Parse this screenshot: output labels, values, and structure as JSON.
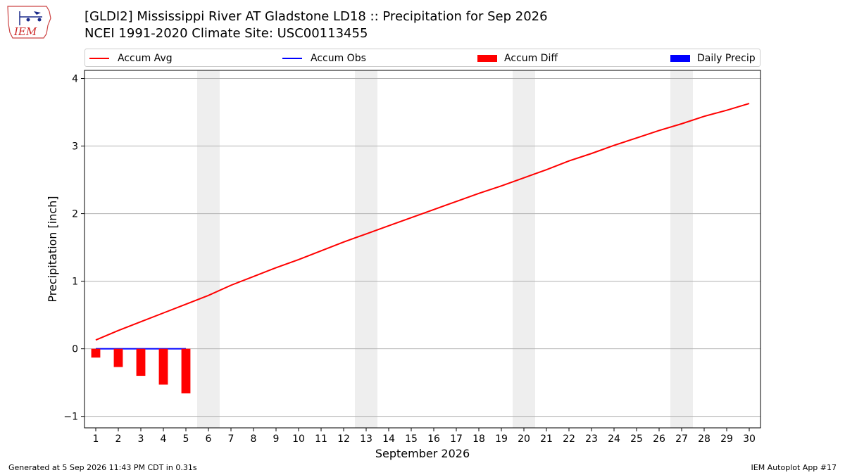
{
  "title_line1": "[GLDI2] Mississippi River  AT Gladstone LD18 :: Precipitation for Sep 2026",
  "title_line2": "NCEI 1991-2020 Climate Site: USC00113455",
  "logo_text": "IEM",
  "legend": {
    "accum_avg": "Accum Avg",
    "accum_obs": "Accum Obs",
    "accum_diff": "Accum Diff",
    "daily_precip": "Daily Precip"
  },
  "colors": {
    "accum_avg": "#ff0000",
    "accum_obs": "#0000ff",
    "accum_diff": "#ff0000",
    "daily_precip": "#0000ff",
    "weekend_shade": "#eeeeee",
    "grid": "#b0b0b0"
  },
  "footer_left": "Generated at 5 Sep 2026 11:43 PM CDT in 0.31s",
  "footer_right": "IEM Autoplot App #17",
  "chart_data": {
    "type": "line",
    "xlabel": "September 2026",
    "ylabel": "Precipitation [inch]",
    "x": [
      1,
      2,
      3,
      4,
      5,
      6,
      7,
      8,
      9,
      10,
      11,
      12,
      13,
      14,
      15,
      16,
      17,
      18,
      19,
      20,
      21,
      22,
      23,
      24,
      25,
      26,
      27,
      28,
      29,
      30
    ],
    "xlim": [
      0.5,
      30.5
    ],
    "ylim": [
      -1.17,
      4.12
    ],
    "yticks": [
      -1,
      0,
      1,
      2,
      3,
      4
    ],
    "ytick_labels": [
      "−1",
      "0",
      "1",
      "2",
      "3",
      "4"
    ],
    "grid": "horizontal",
    "legend_position": "top",
    "weekend_shading": [
      [
        5.5,
        6.5
      ],
      [
        12.5,
        13.5
      ],
      [
        19.5,
        20.5
      ],
      [
        26.5,
        27.5
      ]
    ],
    "series": [
      {
        "name": "Accum Avg",
        "kind": "line",
        "x": [
          1,
          2,
          3,
          4,
          5,
          6,
          7,
          8,
          9,
          10,
          11,
          12,
          13,
          14,
          15,
          16,
          17,
          18,
          19,
          20,
          21,
          22,
          23,
          24,
          25,
          26,
          27,
          28,
          29,
          30
        ],
        "values": [
          0.13,
          0.27,
          0.4,
          0.53,
          0.66,
          0.79,
          0.94,
          1.07,
          1.2,
          1.32,
          1.45,
          1.58,
          1.7,
          1.82,
          1.94,
          2.06,
          2.18,
          2.3,
          2.41,
          2.53,
          2.65,
          2.78,
          2.89,
          3.01,
          3.12,
          3.23,
          3.33,
          3.44,
          3.53,
          3.63
        ]
      },
      {
        "name": "Accum Obs",
        "kind": "line",
        "x": [
          1,
          2,
          3,
          4,
          5
        ],
        "values": [
          0,
          0,
          0,
          0,
          0
        ]
      },
      {
        "name": "Accum Diff",
        "kind": "bar",
        "x": [
          1,
          2,
          3,
          4,
          5
        ],
        "values": [
          -0.13,
          -0.27,
          -0.4,
          -0.53,
          -0.66
        ]
      },
      {
        "name": "Daily Precip",
        "kind": "bar",
        "x": [
          1,
          2,
          3,
          4,
          5
        ],
        "values": [
          0,
          0,
          0,
          0,
          0
        ]
      }
    ]
  }
}
